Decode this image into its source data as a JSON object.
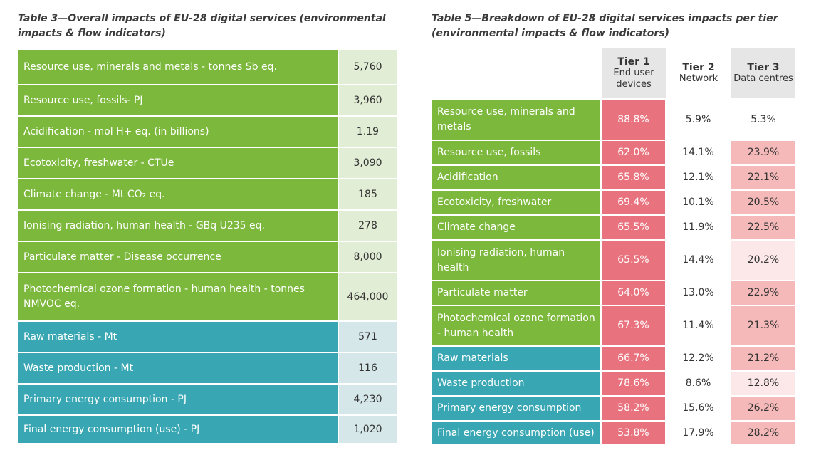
{
  "table3": {
    "title": "Table 3—Overall impacts of EU-28 digital services (environmental impacts & flow indicators)",
    "rows": [
      [
        "Resource use, minerals and metals - tonnes Sb eq.",
        "5,760"
      ],
      [
        "Resource use, fossils- PJ",
        "3,960"
      ],
      [
        "Acidification - mol H+ eq. (in billions)",
        "1.19"
      ],
      [
        "Ecotoxicity, freshwater - CTUe",
        "3,090"
      ],
      [
        "Climate change - Mt CO₂ eq.",
        "185"
      ],
      [
        "Ionising radiation, human health - GBq U235 eq.",
        "278"
      ],
      [
        "Particulate matter - Disease occurrence",
        "8,000"
      ],
      [
        "Photochemical ozone formation - human health - tonnes NMVOC eq.",
        "464,000"
      ],
      [
        "Raw materials - Mt",
        "571"
      ],
      [
        "Waste production - Mt",
        "116"
      ],
      [
        "Primary energy consumption - PJ",
        "4,230"
      ],
      [
        "Final energy consumption (use) - PJ",
        "1,020"
      ]
    ]
  },
  "table5": {
    "title": "Table 5—Breakdown of EU-28 digital services impacts per tier (environmental impacts & flow indicators)",
    "header": [
      [
        "Tier 1",
        "End user devices"
      ],
      [
        "Tier 2",
        "Network"
      ],
      [
        "Tier 3",
        "Data centres"
      ]
    ],
    "rows": [
      [
        "Resource use, minerals and metals",
        "88.8%",
        "5.9%",
        "5.3%"
      ],
      [
        "Resource use, fossils",
        "62.0%",
        "14.1%",
        "23.9%"
      ],
      [
        "Acidification",
        "65.8%",
        "12.1%",
        "22.1%"
      ],
      [
        "Ecotoxicity, freshwater",
        "69.4%",
        "10.1%",
        "20.5%"
      ],
      [
        "Climate change",
        "65.5%",
        "11.9%",
        "22.5%"
      ],
      [
        "Ionising radiation, human health",
        "65.5%",
        "14.4%",
        "20.2%"
      ],
      [
        "Particulate matter",
        "64.0%",
        "13.0%",
        "22.9%"
      ],
      [
        "Photochemical ozone formation - human health",
        "67.3%",
        "11.4%",
        "21.3%"
      ],
      [
        "Raw materials",
        "66.7%",
        "12.2%",
        "21.2%"
      ],
      [
        "Waste production",
        "78.6%",
        "8.6%",
        "12.8%"
      ],
      [
        "Primary energy consumption",
        "58.2%",
        "15.6%",
        "26.2%"
      ],
      [
        "Final energy consumption (use)",
        "53.8%",
        "17.9%",
        "28.2%"
      ]
    ]
  }
}
